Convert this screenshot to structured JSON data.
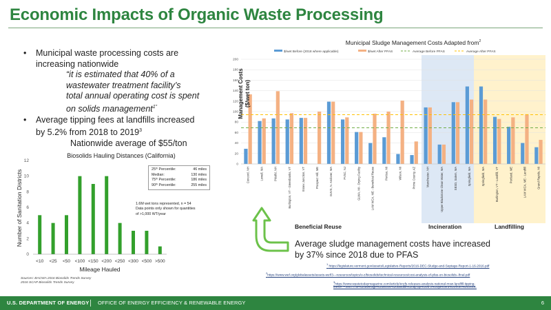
{
  "title": "Economic Impacts of Organic Waste Processing",
  "bullets": {
    "b1_line1": "Municipal waste processing costs are",
    "b1_line2": "increasing nationwide",
    "q1": "“it is estimated that 40% of a",
    "q2": "wastewater treatment facility’s",
    "q3": "total annual operating cost is spent",
    "q4": "on solids management",
    "q4_sup": "1”",
    "b2_line1": "Average tipping fees at landfills increased",
    "b2_line2": "by 5.2% from 2018 to 2019",
    "b2_sup": "3",
    "b2_line3": "Nationwide average of $55/ton",
    "bullet_glyph": "•"
  },
  "right_chart_title": "Municipal Sludge Management Costs Adapted from",
  "right_chart_title_sup": "2",
  "y_axis_label_1": "Management Costs",
  "y_axis_label_2": "($/wet ton)",
  "group_labels": {
    "beneficial": "Beneficial Reuse",
    "incineration": "Incineration",
    "landfilling": "Landfilling"
  },
  "arrow_text_1": "Average sludge management costs have increased",
  "arrow_text_2": "by 37% since 2018 due to PFAS",
  "footnotes": {
    "fn1": "https://legislature.vermont.gov/assets/Legislative-Reports/2016-DEC-Sludge-and-Septage-Report-1-16-2016.pdf",
    "fn1_num": "1",
    "fn2": "https://www.wef.org/globalassets/assets-wef/3---resources/topics/o-z/biosolids/technical-resources/cost-analysis-of-pfas-on-biosolids--final.pdf",
    "fn2_num": "2",
    "fn3a": "https://www.wastetodaymagazine.com/article/erefs-releases-analysis-national-msw-landfill-tipping-",
    "fn3b": "fees/#:~:text=The%20average%20MSW%20landfill%20tip,up%205.2%20percent%20from%202018.",
    "fn3_num": "3"
  },
  "left_chart_title": "Biosolids Hauling Distances (California)",
  "stats": [
    {
      "label": "25ᵗʰ Percentile:",
      "value": "46 miles"
    },
    {
      "label": "Median:",
      "value": "130 miles"
    },
    {
      "label": "75ᵗʰ Percentile:",
      "value": "186 miles"
    },
    {
      "label": "90ᵗʰ Percentile:",
      "value": "255 miles"
    }
  ],
  "wet_tons_note": [
    "1.6M wet tons represented, n = 54",
    "Data points only shown for quantities",
    "of >1,000 WT/year"
  ],
  "sources": [
    "Sources: BACWA 2016 Biosolids Trends Survey",
    "2016 SCAP Biosolids Trends Survey"
  ],
  "footer": {
    "doe": "U.S. DEPARTMENT OF ENERGY",
    "office": "OFFICE OF ENERGY EFFICIENCY & RENEWABLE ENERGY",
    "page": "6"
  },
  "colors": {
    "title_green": "#2e8540",
    "before_blue": "#5b9bd5",
    "after_orange": "#f4b183",
    "avg_before_green": "#70ad47",
    "avg_after_yellow": "#ffc000",
    "histogram_green": "#33a02c",
    "incineration_band": "#dde8f5",
    "landfilling_band": "#fff2cc"
  },
  "chart_data": [
    {
      "type": "bar",
      "title": "Municipal Sludge Management Costs Adapted from²",
      "ylabel": "Management Costs ($/wet ton)",
      "ylim": [
        0,
        200
      ],
      "yticks": [
        0,
        20,
        40,
        60,
        80,
        100,
        120,
        140,
        160,
        180,
        200
      ],
      "categories": [
        "Concord, NH",
        "Lowell, MA",
        "Pittsfld, NH",
        "Burlington, VT - Greenbanks, VT",
        "Essex Junction, VT",
        "Prospect Hill, ME",
        "GUVS, N. Andover, MA",
        "FVSC, NJ",
        "GLWA, MI - Drying Facility",
        "LAM WCA, ME - Beneficial Reuse",
        "Portiso, MI",
        "Wilson, MI",
        "Prime County, AZ",
        "Manchester, NH",
        "Upper Blackstone Clean Water, MA",
        "SESD, Salem, MA",
        "Springfield, MA",
        "Springfield, MA",
        "Burlington, VT - Landfill, VT",
        "Portland, ME",
        "LAM WCA, ME - Landfill",
        "Grand Rapids, MI"
      ],
      "series": [
        {
          "name": "$/wet Before (2018 where applicable)",
          "values": [
            29,
            82,
            87,
            85,
            88,
            0,
            119,
            85,
            61,
            40,
            51,
            19,
            17,
            108,
            37,
            118,
            148,
            148,
            90,
            71,
            40,
            32
          ]
        },
        {
          "name": "$/wet After PFAS",
          "values": [
            133,
            87,
            139,
            97,
            88,
            100,
            119,
            89,
            61,
            96,
            100,
            121,
            43,
            108,
            37,
            118,
            123,
            123,
            86,
            89,
            95,
            46
          ]
        }
      ],
      "reference_lines": [
        {
          "name": "Average Before PFAS",
          "value": 69
        },
        {
          "name": "Average After PFAS",
          "value": 94
        }
      ],
      "groups": [
        {
          "name": "Beneficial Reuse",
          "from": 0,
          "to": 12
        },
        {
          "name": "Incineration",
          "from": 13,
          "to": 15
        },
        {
          "name": "Landfilling",
          "from": 16,
          "to": 21
        }
      ]
    },
    {
      "type": "bar",
      "title": "Biosolids Hauling Distances (California)",
      "xlabel": "Mileage Hauled",
      "ylabel": "Number of Sanitation Districts",
      "ylim": [
        0,
        12
      ],
      "yticks": [
        0,
        2,
        4,
        6,
        8,
        10,
        12
      ],
      "categories": [
        "<10",
        "<25",
        "<50",
        "<100",
        "<150",
        "<200",
        "<250",
        "<300",
        "<500",
        ">500"
      ],
      "values": [
        5,
        4,
        5,
        10,
        9,
        10,
        4,
        3,
        3,
        1
      ]
    }
  ]
}
